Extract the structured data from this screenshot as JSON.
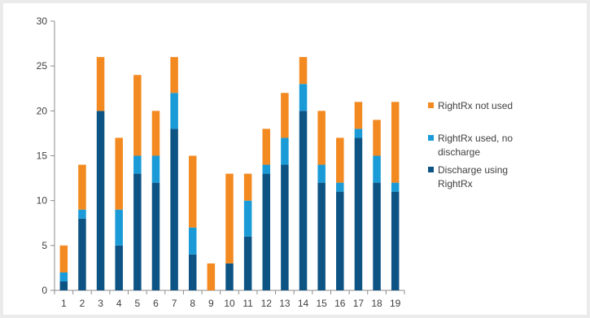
{
  "chart_data": {
    "type": "bar",
    "stacked": true,
    "categories": [
      "1",
      "2",
      "3",
      "4",
      "5",
      "6",
      "7",
      "8",
      "9",
      "10",
      "11",
      "12",
      "13",
      "14",
      "15",
      "16",
      "17",
      "18",
      "19"
    ],
    "series": [
      {
        "name": "Discharge using RightRx",
        "color": "#0d5485",
        "values": [
          1,
          8,
          20,
          5,
          13,
          12,
          18,
          4,
          0,
          3,
          6,
          13,
          14,
          20,
          12,
          11,
          17,
          12,
          11
        ]
      },
      {
        "name": "RightRx used, no discharge",
        "color": "#1a9bd7",
        "values": [
          1,
          1,
          0,
          4,
          2,
          3,
          4,
          3,
          0,
          0,
          4,
          1,
          3,
          3,
          2,
          1,
          1,
          3,
          1
        ]
      },
      {
        "name": "RightRx not used",
        "color": "#f38a21",
        "values": [
          3,
          5,
          6,
          8,
          9,
          5,
          4,
          8,
          3,
          10,
          3,
          4,
          5,
          3,
          6,
          5,
          3,
          4,
          9
        ]
      }
    ],
    "yticks": [
      "0",
      "5",
      "10",
      "15",
      "20",
      "25",
      "30"
    ],
    "ylim": [
      0,
      30
    ],
    "title": "",
    "xlabel": "",
    "ylabel": "",
    "legend": {
      "position": "right",
      "order": [
        2,
        1,
        0
      ],
      "lines": [
        [
          "RightRx not used"
        ],
        [
          "RightRx used, no",
          "discharge"
        ],
        [
          "Discharge using",
          "RightRx"
        ]
      ]
    },
    "grid": false
  }
}
